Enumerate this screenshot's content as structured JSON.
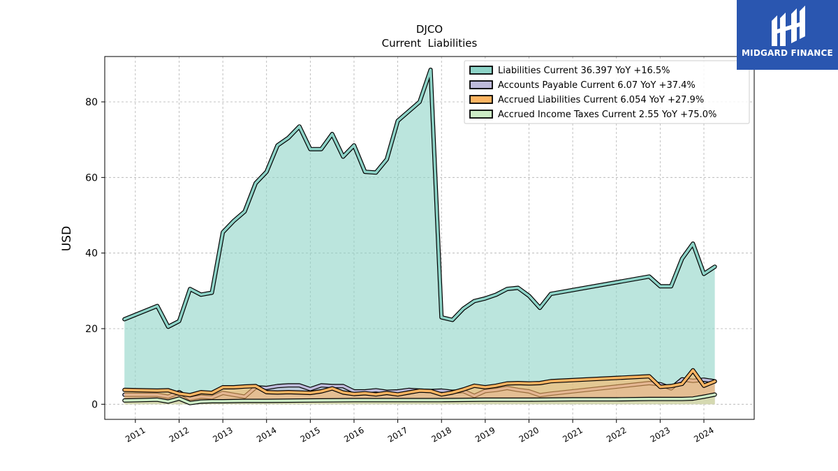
{
  "brand": {
    "name": "MIDGARD FINANCE",
    "color": "#2a56b0"
  },
  "chart_data": {
    "type": "area",
    "title": "DJCO",
    "subtitle": "Current  Liabilities",
    "ylabel": "USD",
    "xlabel": "",
    "ylim": [
      -4,
      92
    ],
    "xlim": [
      2010.3,
      2025.15
    ],
    "yticks": [
      0,
      20,
      40,
      60,
      80
    ],
    "xticks": [
      "2011",
      "2012",
      "2013",
      "2014",
      "2015",
      "2016",
      "2017",
      "2018",
      "2019",
      "2020",
      "2021",
      "2022",
      "2023",
      "2024"
    ],
    "grid": true,
    "legend_position": "top-right",
    "series": [
      {
        "name": "Liabilities Current  36.397 YoY +16.5%",
        "color": "#8dd3c7",
        "x": [
          2010.75,
          2011.5,
          2011.75,
          2012.0,
          2012.25,
          2012.5,
          2012.75,
          2013.0,
          2013.25,
          2013.5,
          2013.75,
          2014.0,
          2014.25,
          2014.5,
          2014.75,
          2015.0,
          2015.25,
          2015.5,
          2015.75,
          2016.0,
          2016.25,
          2016.5,
          2016.75,
          2017.0,
          2017.25,
          2017.5,
          2017.75,
          2018.0,
          2018.25,
          2018.5,
          2018.75,
          2019.0,
          2019.25,
          2019.5,
          2019.75,
          2020.0,
          2020.25,
          2020.5,
          2022.75,
          2023.0,
          2023.25,
          2023.5,
          2023.75,
          2024.0,
          2024.25
        ],
        "values": [
          22.5,
          26.0,
          20.5,
          22.0,
          30.5,
          29.0,
          29.5,
          45.5,
          48.5,
          51.0,
          58.5,
          61.5,
          68.5,
          70.5,
          73.5,
          67.5,
          67.5,
          71.5,
          65.5,
          68.5,
          61.5,
          61.3,
          64.8,
          75.0,
          77.5,
          80.0,
          88.5,
          23.0,
          22.3,
          25.3,
          27.3,
          28.0,
          29.0,
          30.5,
          30.8,
          28.7,
          25.5,
          29.2,
          33.8,
          31.2,
          31.2,
          38.5,
          42.5,
          34.5,
          36.4
        ]
      },
      {
        "name": "Accounts Payable Current  6.07 YoY +37.4%",
        "color": "#bebada",
        "x": [
          2010.75,
          2011.5,
          2011.75,
          2012.0,
          2012.25,
          2012.5,
          2012.75,
          2013.0,
          2013.25,
          2013.5,
          2013.75,
          2014.0,
          2014.25,
          2014.5,
          2014.75,
          2015.0,
          2015.25,
          2015.5,
          2015.75,
          2016.0,
          2016.25,
          2016.5,
          2016.75,
          2017.0,
          2017.25,
          2017.5,
          2017.75,
          2018.0,
          2018.25,
          2018.5,
          2018.75,
          2019.0,
          2019.25,
          2019.5,
          2019.75,
          2020.0,
          2020.25,
          2020.5,
          2022.75,
          2023.0,
          2023.25,
          2023.5,
          2023.75,
          2024.0,
          2024.25
        ],
        "values": [
          2.5,
          2.5,
          2.0,
          3.2,
          1.5,
          2.0,
          1.8,
          3.0,
          2.5,
          2.0,
          4.5,
          4.3,
          4.8,
          5.0,
          5.0,
          4.0,
          5.0,
          4.8,
          4.8,
          3.4,
          3.4,
          3.7,
          3.3,
          3.4,
          3.8,
          3.6,
          3.5,
          3.6,
          3.3,
          3.5,
          2.2,
          3.5,
          3.8,
          4.3,
          3.8,
          3.4,
          2.4,
          2.8,
          5.6,
          5.3,
          4.2,
          6.6,
          6.2,
          6.5,
          6.07
        ]
      },
      {
        "name": "Accrued Liabilities Current  6.054 YoY +27.9%",
        "color": "#fdb462",
        "x": [
          2010.75,
          2011.5,
          2011.75,
          2012.0,
          2012.25,
          2012.5,
          2012.75,
          2013.0,
          2013.25,
          2013.5,
          2013.75,
          2014.0,
          2014.25,
          2014.5,
          2014.75,
          2015.0,
          2015.25,
          2015.5,
          2015.75,
          2016.0,
          2016.25,
          2016.5,
          2016.75,
          2017.0,
          2017.25,
          2017.5,
          2017.75,
          2018.0,
          2018.25,
          2018.5,
          2018.75,
          2019.0,
          2019.25,
          2019.5,
          2019.75,
          2020.0,
          2020.25,
          2020.5,
          2022.75,
          2023.0,
          2023.25,
          2023.5,
          2023.75,
          2024.0,
          2024.25
        ],
        "values": [
          3.8,
          3.6,
          3.7,
          2.8,
          2.4,
          3.2,
          3.0,
          4.5,
          4.5,
          4.7,
          4.8,
          3.2,
          3.1,
          3.2,
          3.1,
          3.0,
          3.4,
          4.2,
          3.1,
          2.7,
          2.9,
          2.6,
          3.0,
          2.6,
          3.1,
          3.6,
          3.5,
          2.6,
          3.1,
          3.9,
          4.9,
          4.5,
          4.9,
          5.5,
          5.6,
          5.5,
          5.6,
          6.1,
          7.4,
          4.6,
          4.8,
          5.4,
          9.0,
          4.9,
          6.054
        ]
      },
      {
        "name": "Accrued Income Taxes Current  2.55 YoY +75.0%",
        "color": "#ccebc5",
        "x": [
          2010.75,
          2011.5,
          2011.75,
          2012.0,
          2012.25,
          2012.5,
          2012.75,
          2013.0,
          2013.5,
          2014.0,
          2015.0,
          2016.0,
          2017.0,
          2018.0,
          2019.0,
          2020.0,
          2021.0,
          2022.0,
          2022.75,
          2023.0,
          2023.5,
          2023.75,
          2024.0,
          2024.25
        ],
        "values": [
          1.0,
          1.2,
          0.7,
          1.5,
          0.3,
          0.7,
          0.8,
          0.8,
          0.9,
          0.9,
          1.0,
          1.1,
          1.1,
          1.1,
          1.2,
          1.2,
          1.3,
          1.3,
          1.4,
          1.4,
          1.4,
          1.5,
          2.0,
          2.55
        ]
      }
    ]
  }
}
